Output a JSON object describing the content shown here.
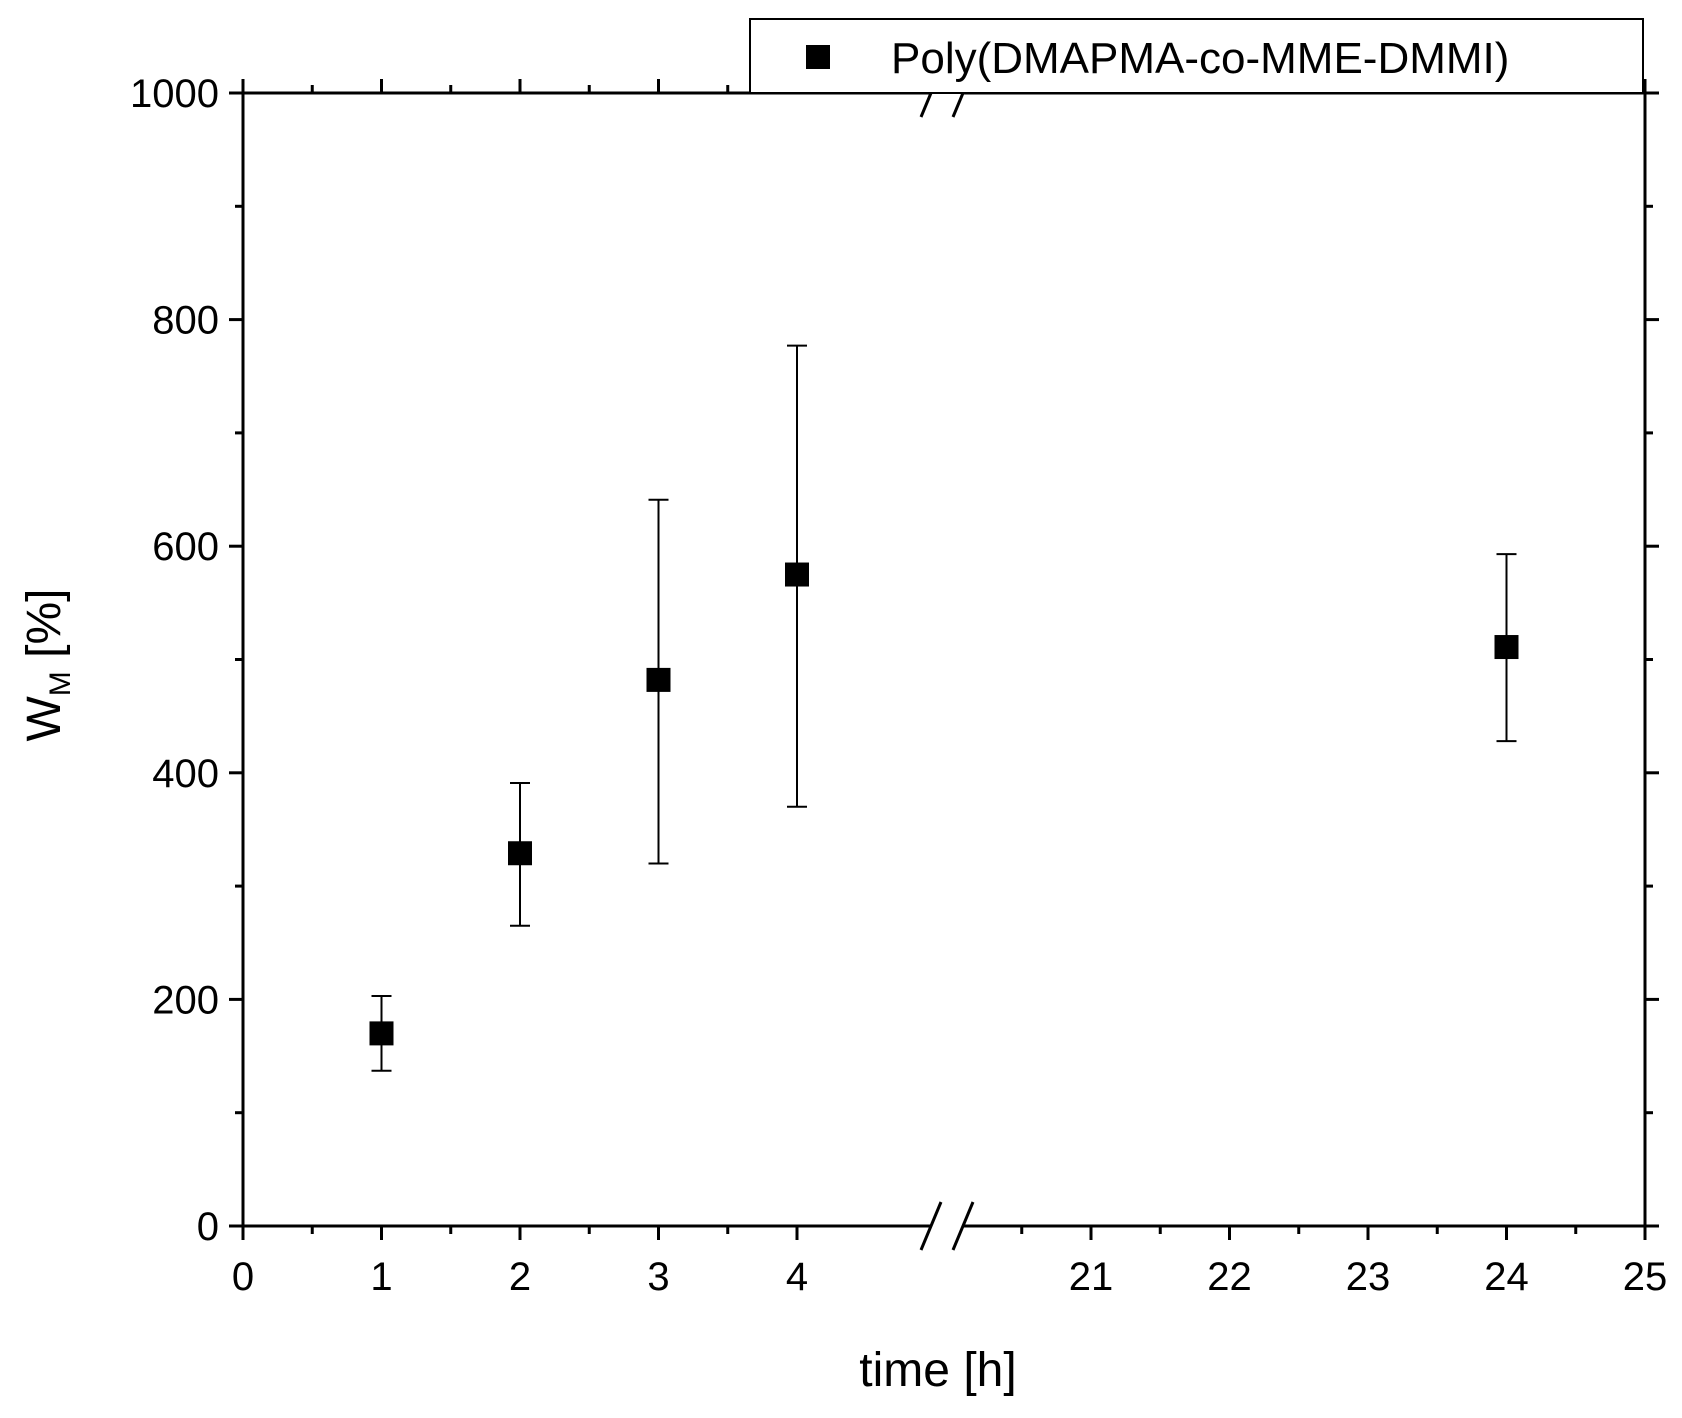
{
  "chart_data": {
    "type": "scatter",
    "xlabel": "time [h]",
    "ylabel": "W",
    "ylabel_sub": "M",
    "ylabel_unit": " [%]",
    "xlim": [
      0,
      25
    ],
    "ylim": [
      0,
      1000
    ],
    "axis_break": {
      "from": 4.5,
      "to": 20.5
    },
    "grid": false,
    "legend_position": "top-right",
    "x_ticks": [
      0,
      1,
      2,
      3,
      4,
      21,
      22,
      23,
      24,
      25
    ],
    "y_ticks": [
      0,
      200,
      400,
      600,
      800,
      1000
    ],
    "series": [
      {
        "name": "Poly(DMAPMA-co-MME-DMMI)",
        "marker": "square",
        "color": "#000000",
        "points": [
          {
            "x": 1,
            "y": 170,
            "err_low": 137,
            "err_high": 203
          },
          {
            "x": 2,
            "y": 329,
            "err_low": 265,
            "err_high": 391
          },
          {
            "x": 3,
            "y": 482,
            "err_low": 320,
            "err_high": 641
          },
          {
            "x": 4,
            "y": 575,
            "err_low": 370,
            "err_high": 777
          },
          {
            "x": 24,
            "y": 511,
            "err_low": 428,
            "err_high": 593
          }
        ]
      }
    ]
  }
}
